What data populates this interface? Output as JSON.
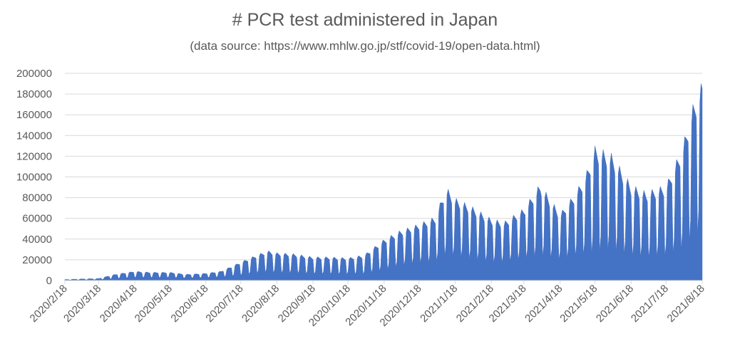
{
  "chart_data": {
    "type": "area",
    "title": "# PCR test administered in Japan",
    "subtitle": "(data source: https://www.mhlw.go.jp/stf/covid-19/open-data.html)",
    "xlabel": "",
    "ylabel": "",
    "x_range": [
      "2020/2/18",
      "2021/8/18"
    ],
    "ylim": [
      0,
      200000
    ],
    "y_ticks": [
      0,
      20000,
      40000,
      60000,
      80000,
      100000,
      120000,
      140000,
      160000,
      180000,
      200000
    ],
    "x_ticks": [
      "2020/2/18",
      "2020/3/18",
      "2020/4/18",
      "2020/5/18",
      "2020/6/18",
      "2020/7/18",
      "2020/8/18",
      "2020/9/18",
      "2020/10/18",
      "2020/11/18",
      "2020/12/18",
      "2021/1/18",
      "2021/2/18",
      "2021/3/18",
      "2021/4/18",
      "2021/5/18",
      "2021/6/18",
      "2021/7/18",
      "2021/8/18"
    ],
    "grid": true,
    "legend": "none",
    "series_color": "#4472C4",
    "weekly_envelope": {
      "dates": [
        "2020/2/18",
        "2020/3/1",
        "2020/3/18",
        "2020/4/1",
        "2020/4/18",
        "2020/5/1",
        "2020/5/18",
        "2020/6/1",
        "2020/6/18",
        "2020/7/1",
        "2020/7/18",
        "2020/8/1",
        "2020/8/10",
        "2020/8/18",
        "2020/9/1",
        "2020/9/18",
        "2020/10/1",
        "2020/10/18",
        "2020/11/1",
        "2020/11/18",
        "2020/12/1",
        "2020/12/18",
        "2021/1/1",
        "2021/1/10",
        "2021/1/18",
        "2021/2/1",
        "2021/2/18",
        "2021/3/1",
        "2021/3/18",
        "2021/4/1",
        "2021/4/18",
        "2021/5/1",
        "2021/5/10",
        "2021/5/18",
        "2021/6/1",
        "2021/6/18",
        "2021/7/1",
        "2021/7/18",
        "2021/8/1",
        "2021/8/10",
        "2021/8/18"
      ],
      "weekday_peak": [
        1000,
        1500,
        2000,
        6000,
        9000,
        8000,
        8000,
        6000,
        7000,
        9000,
        18000,
        25000,
        29000,
        27000,
        26000,
        23000,
        23000,
        22000,
        25000,
        40000,
        48000,
        55000,
        62000,
        91000,
        80000,
        72000,
        60000,
        57000,
        70000,
        94000,
        65000,
        85000,
        103000,
        130000,
        123000,
        93000,
        86000,
        93000,
        130000,
        170000,
        193000
      ],
      "weekend_low": [
        300,
        500,
        700,
        1500,
        2500,
        2500,
        2500,
        2000,
        2500,
        3000,
        4000,
        6000,
        7000,
        6000,
        6000,
        5000,
        5000,
        5000,
        5000,
        8000,
        12000,
        15000,
        15000,
        20000,
        20000,
        18000,
        15000,
        15000,
        18000,
        20000,
        18000,
        20000,
        20000,
        20000,
        25000,
        20000,
        18000,
        20000,
        25000,
        35000,
        40000
      ]
    }
  }
}
